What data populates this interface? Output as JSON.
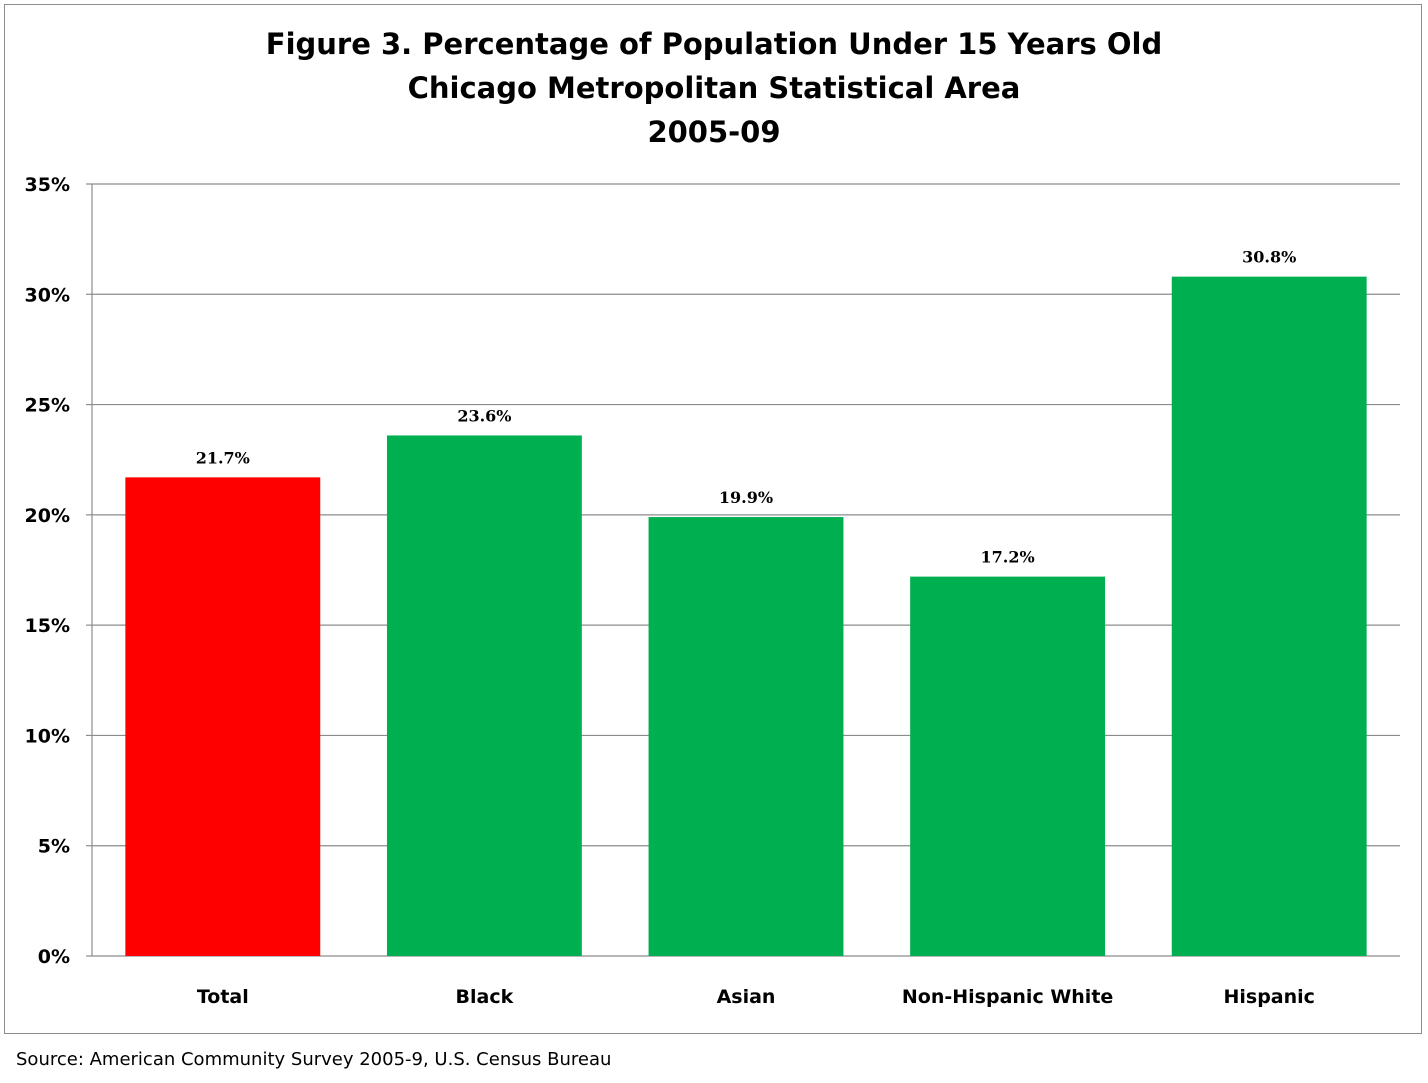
{
  "chart_data": {
    "type": "bar",
    "title_lines": [
      "Figure 3. Percentage of Population Under 15 Years Old",
      "Chicago Metropolitan Statistical Area",
      "2005-09"
    ],
    "categories": [
      "Total",
      "Black",
      "Asian",
      "Non-Hispanic White",
      "Hispanic"
    ],
    "values": [
      21.7,
      23.6,
      19.9,
      17.2,
      30.8
    ],
    "data_labels": [
      "21.7%",
      "23.6%",
      "19.9%",
      "17.2%",
      "30.8%"
    ],
    "bar_colors": [
      "#ff0000",
      "#00b050",
      "#00b050",
      "#00b050",
      "#00b050"
    ],
    "ylim": [
      0,
      35
    ],
    "yticks": [
      0,
      5,
      10,
      15,
      20,
      25,
      30,
      35
    ],
    "ytick_labels": [
      "0%",
      "5%",
      "10%",
      "15%",
      "20%",
      "25%",
      "30%",
      "35%"
    ],
    "xlabel": "",
    "ylabel": "",
    "grid": true,
    "legend": "none"
  },
  "source_note": "Source: American Community Survey 2005-9, U.S. Census Bureau"
}
